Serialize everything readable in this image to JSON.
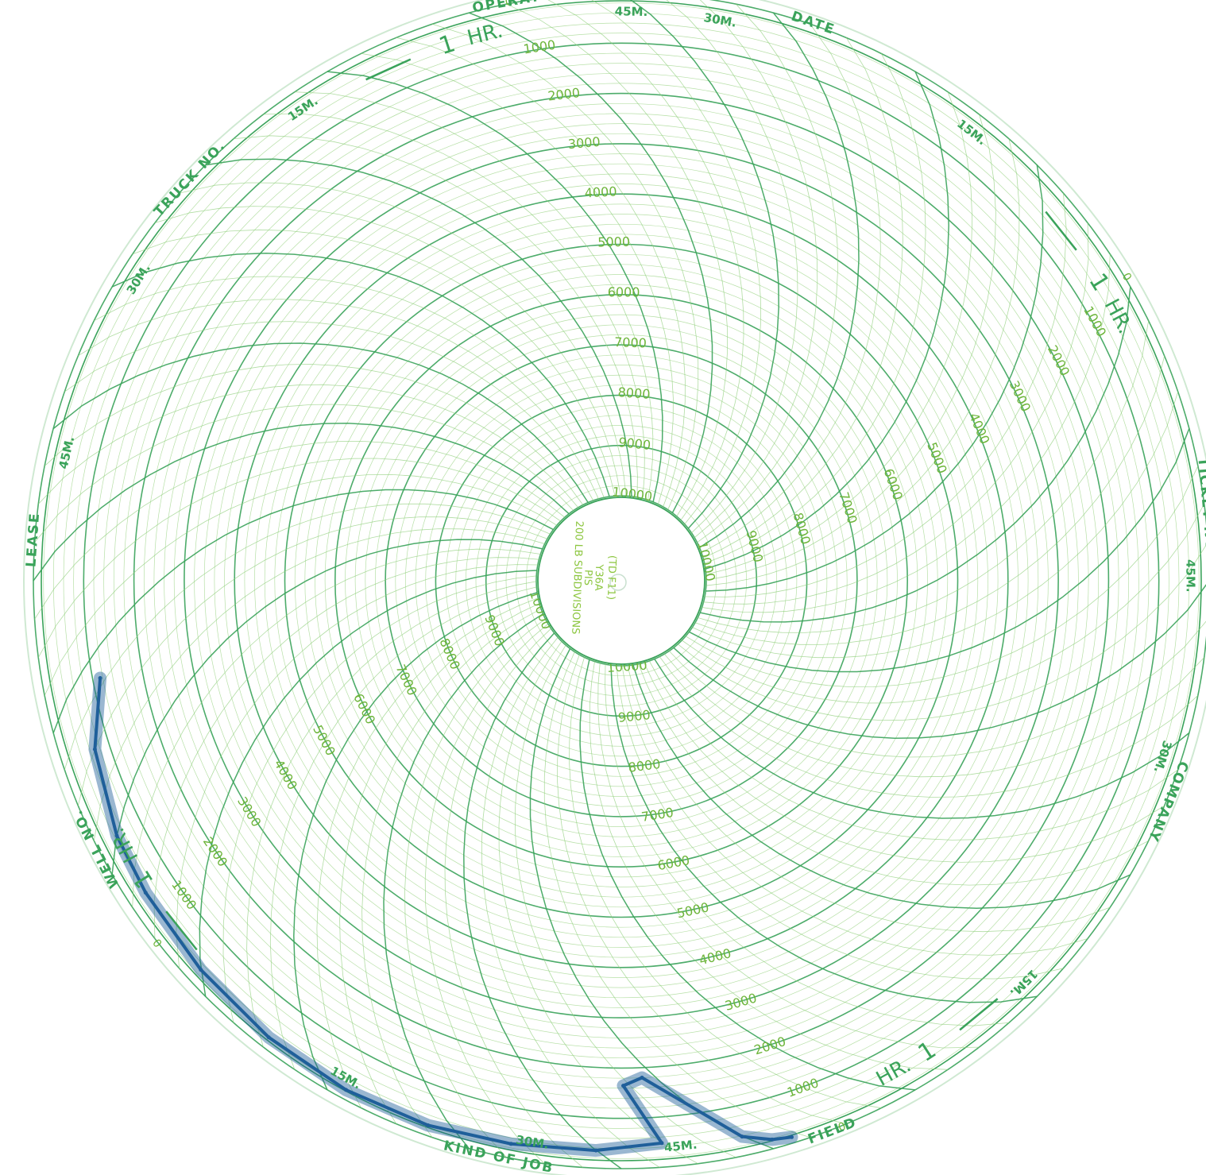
{
  "chart_data": {
    "type": "line",
    "polar": true,
    "description_units": "radial pressure scale 0 (outer rim) to 10000 (inner ring)",
    "radial_scale": {
      "min": 0,
      "max": 10000,
      "major_step": 1000,
      "tick_labels": [
        "0",
        "1000",
        "2000",
        "3000",
        "4000",
        "5000",
        "6000",
        "7000",
        "8000",
        "9000",
        "10000"
      ]
    },
    "time_scale": {
      "revolution_hours": 4,
      "minute_labels": [
        "15M.",
        "30M.",
        "45M."
      ],
      "hour_label": "HR.",
      "hour_mark": "1"
    },
    "field_labels": {
      "operator": "OPERATOR",
      "date": "DATE",
      "truck_no": "TRUCK NO.",
      "lease": "LEASE",
      "well_no": "WELL NO.",
      "ticket_number": "TICKET NUMBER",
      "company": "COMPANY",
      "kind_of_job": "KIND OF JOB",
      "field": "FIELD"
    },
    "center_label": {
      "model": "Y36A",
      "units": "PIS",
      "subdivisions": "200 LB SUBDIVISIONS",
      "code": "(TD F11)"
    },
    "series": [
      {
        "color": "#1f5f9a",
        "points": [
          {
            "time_min": 0,
            "value": 1150
          },
          {
            "time_min": 3,
            "value": 700
          },
          {
            "time_min": 8,
            "value": 450
          },
          {
            "time_min": 12,
            "value": 380
          },
          {
            "time_min": 18,
            "value": 300
          },
          {
            "time_min": 24,
            "value": 220
          },
          {
            "time_min": 30,
            "value": 180
          },
          {
            "time_min": 36,
            "value": 200
          },
          {
            "time_min": 42,
            "value": 280
          },
          {
            "time_min": 48,
            "value": 350
          },
          {
            "time_min": 53,
            "value": 480
          },
          {
            "time_min": 55,
            "value": 1650
          },
          {
            "time_min": 57,
            "value": 1800
          },
          {
            "time_min": 58,
            "value": 380
          },
          {
            "time_min": 59,
            "value": 180
          },
          {
            "time_min": 60,
            "value": 120
          }
        ]
      }
    ]
  }
}
